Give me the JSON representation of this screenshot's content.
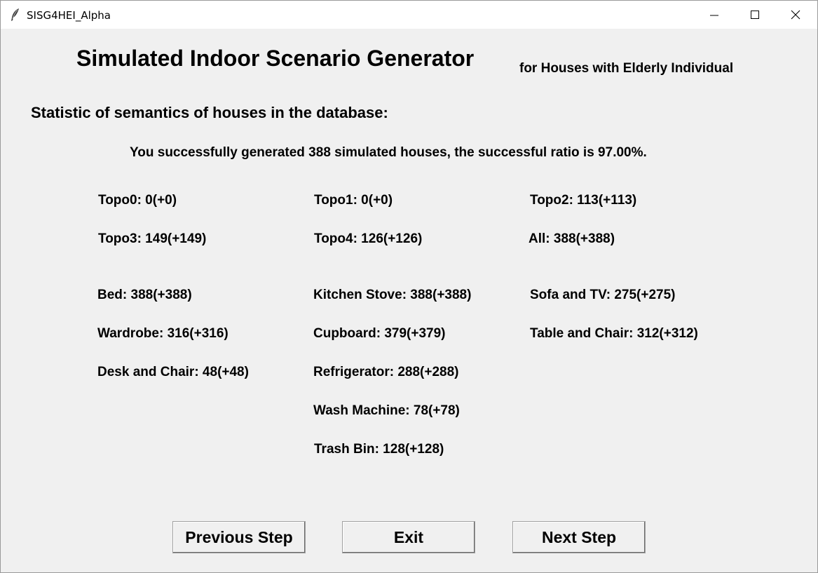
{
  "window": {
    "title": "SISG4HEI_Alpha"
  },
  "header": {
    "title": "Simulated Indoor Scenario Generator",
    "subtitle": "for Houses with Elderly Individual"
  },
  "section_heading": "Statistic of semantics of houses in the database:",
  "message": "You successfully generated 388 simulated houses, the successful ratio is 97.00%.",
  "topology_stats": [
    "Topo0: 0(+0)",
    "Topo1: 0(+0)",
    "Topo2: 113(+113)",
    "Topo3: 149(+149)",
    "Topo4: 126(+126)",
    "All: 388(+388)"
  ],
  "furniture_stats": [
    "Bed: 388(+388)",
    "Kitchen Stove: 388(+388)",
    "Sofa and TV: 275(+275)",
    "Wardrobe: 316(+316)",
    "Cupboard: 379(+379)",
    "Table and Chair: 312(+312)",
    "Desk and Chair: 48(+48)",
    "Refrigerator: 288(+288)",
    "Wash Machine: 78(+78)",
    "Trash Bin: 128(+128)"
  ],
  "buttons": {
    "previous": "Previous Step",
    "exit": "Exit",
    "next": "Next Step"
  }
}
